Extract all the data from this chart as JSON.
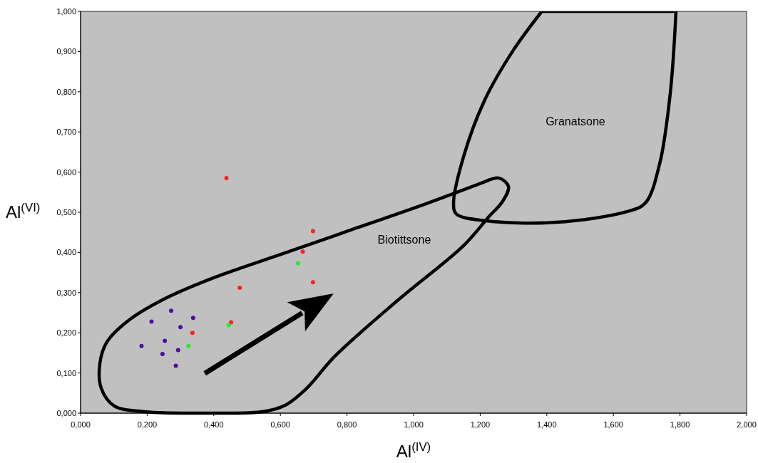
{
  "chart_data": {
    "type": "scatter",
    "xlabel": "Al$^{(IV)}$",
    "ylabel": "Al$^{(VI)}$",
    "xlim": [
      0,
      2
    ],
    "ylim": [
      0,
      1
    ],
    "xticks": [
      {
        "value": 0,
        "label": "0,000"
      },
      {
        "value": 0.2,
        "label": "0,200"
      },
      {
        "value": 0.4,
        "label": "0,400"
      },
      {
        "value": 0.6,
        "label": "0,600"
      },
      {
        "value": 0.8,
        "label": "0,800"
      },
      {
        "value": 1,
        "label": "1,000"
      },
      {
        "value": 1.2,
        "label": "1,200"
      },
      {
        "value": 1.4,
        "label": "1,400"
      },
      {
        "value": 1.6,
        "label": "1,600"
      },
      {
        "value": 1.8,
        "label": "1,800"
      },
      {
        "value": 2,
        "label": "2,000"
      }
    ],
    "yticks": [
      {
        "value": 0,
        "label": "0,000"
      },
      {
        "value": 0.1,
        "label": "0,100"
      },
      {
        "value": 0.2,
        "label": "0,200"
      },
      {
        "value": 0.3,
        "label": "0,300"
      },
      {
        "value": 0.4,
        "label": "0,400"
      },
      {
        "value": 0.5,
        "label": "0,500"
      },
      {
        "value": 0.6,
        "label": "0,600"
      },
      {
        "value": 0.7,
        "label": "0,700"
      },
      {
        "value": 0.8,
        "label": "0,800"
      },
      {
        "value": 0.9,
        "label": "0,900"
      },
      {
        "value": 1,
        "label": "1,000"
      }
    ],
    "grid": false,
    "marker": "circle",
    "series": [
      {
        "color": "#ff2020",
        "x": [
          0.438,
          0.698,
          0.667,
          0.698,
          0.478,
          0.452,
          0.336
        ],
        "values": [
          0.585,
          0.453,
          0.402,
          0.326,
          0.312,
          0.226,
          0.2
        ]
      },
      {
        "color": "#22ee22",
        "x": [
          0.653,
          0.445,
          0.324
        ],
        "values": [
          0.373,
          0.219,
          0.167
        ]
      },
      {
        "color": "#4b0fa8",
        "x": [
          0.272,
          0.213,
          0.338,
          0.3,
          0.253,
          0.183,
          0.246,
          0.293,
          0.286
        ],
        "values": [
          0.255,
          0.228,
          0.237,
          0.214,
          0.18,
          0.167,
          0.147,
          0.157,
          0.118
        ]
      }
    ],
    "annotations": [
      "Biotittsone",
      "Granatsone"
    ]
  }
}
